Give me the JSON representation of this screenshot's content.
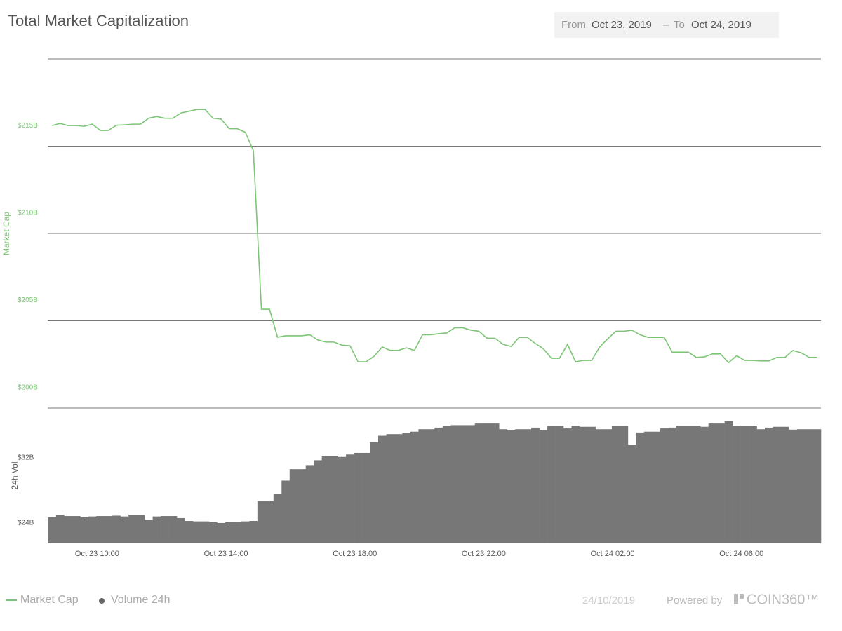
{
  "header": {
    "title": "Total Market Capitalization",
    "from_label": "From",
    "from_date": "Oct 23, 2019",
    "separator": "–",
    "to_label": "To",
    "to_date": "Oct 24, 2019"
  },
  "chart_data": [
    {
      "type": "line",
      "y_label": "Market Cap",
      "x": [
        "Oct 23 08:36",
        "Oct 23 08:51",
        "Oct 23 09:06",
        "Oct 23 09:21",
        "Oct 23 09:36",
        "Oct 23 09:51",
        "Oct 23 10:06",
        "Oct 23 10:21",
        "Oct 23 10:36",
        "Oct 23 10:51",
        "Oct 23 11:06",
        "Oct 23 11:21",
        "Oct 23 11:36",
        "Oct 23 11:51",
        "Oct 23 12:06",
        "Oct 23 12:21",
        "Oct 23 12:36",
        "Oct 23 12:51",
        "Oct 23 13:06",
        "Oct 23 13:21",
        "Oct 23 13:36",
        "Oct 23 13:51",
        "Oct 23 14:06",
        "Oct 23 14:21",
        "Oct 23 14:36",
        "Oct 23 14:51",
        "Oct 23 15:06",
        "Oct 23 15:21",
        "Oct 23 15:36",
        "Oct 23 15:51",
        "Oct 23 16:06",
        "Oct 23 16:21",
        "Oct 23 16:36",
        "Oct 23 16:51",
        "Oct 23 17:06",
        "Oct 23 17:21",
        "Oct 23 17:36",
        "Oct 23 17:51",
        "Oct 23 18:06",
        "Oct 23 18:21",
        "Oct 23 18:36",
        "Oct 23 18:51",
        "Oct 23 19:06",
        "Oct 23 19:21",
        "Oct 23 19:36",
        "Oct 23 19:51",
        "Oct 23 20:06",
        "Oct 23 20:21",
        "Oct 23 20:36",
        "Oct 23 20:51",
        "Oct 23 21:06",
        "Oct 23 21:21",
        "Oct 23 21:36",
        "Oct 23 21:51",
        "Oct 23 22:06",
        "Oct 23 22:21",
        "Oct 23 22:36",
        "Oct 23 22:51",
        "Oct 23 23:06",
        "Oct 23 23:21",
        "Oct 23 23:36",
        "Oct 23 23:51",
        "Oct 24 00:06",
        "Oct 24 00:21",
        "Oct 24 00:36",
        "Oct 24 00:51",
        "Oct 24 01:06",
        "Oct 24 01:21",
        "Oct 24 01:36",
        "Oct 24 01:51",
        "Oct 24 02:06",
        "Oct 24 02:21",
        "Oct 24 02:36",
        "Oct 24 02:51",
        "Oct 24 03:06",
        "Oct 24 03:21",
        "Oct 24 03:36",
        "Oct 24 03:51",
        "Oct 24 04:06",
        "Oct 24 04:21",
        "Oct 24 04:36",
        "Oct 24 04:51",
        "Oct 24 05:06",
        "Oct 24 05:21",
        "Oct 24 05:36",
        "Oct 24 05:51",
        "Oct 24 06:06",
        "Oct 24 06:21",
        "Oct 24 06:36",
        "Oct 24 06:51",
        "Oct 24 07:06",
        "Oct 24 07:21",
        "Oct 24 07:36",
        "Oct 24 07:51",
        "Oct 24 08:06",
        "Oct 24 08:21"
      ],
      "xlim": [
        "Oct 23 08:28",
        "Oct 24 08:28"
      ],
      "ylim": [
        200,
        220
      ],
      "yticks": [
        {
          "value": 200,
          "label": "$200B"
        },
        {
          "value": 205,
          "label": "$205B"
        },
        {
          "value": 210,
          "label": "$210B"
        },
        {
          "value": 215,
          "label": "$215B"
        }
      ],
      "grid": true,
      "series": [
        {
          "name": "Market Cap",
          "color": "#7cc576",
          "values": [
            216.18,
            216.3,
            216.18,
            216.18,
            216.14,
            216.26,
            215.9,
            215.9,
            216.2,
            216.22,
            216.26,
            216.26,
            216.6,
            216.7,
            216.6,
            216.6,
            216.9,
            217.0,
            217.1,
            217.1,
            216.6,
            216.55,
            216.0,
            216.0,
            215.8,
            214.74,
            205.66,
            205.66,
            204.06,
            204.14,
            204.14,
            204.14,
            204.2,
            203.9,
            203.78,
            203.78,
            203.6,
            203.57,
            202.65,
            202.65,
            202.97,
            203.5,
            203.3,
            203.3,
            203.45,
            203.3,
            204.2,
            204.2,
            204.26,
            204.3,
            204.6,
            204.6,
            204.46,
            204.4,
            204.0,
            204.0,
            203.65,
            203.53,
            204.05,
            204.05,
            203.7,
            203.4,
            202.85,
            202.85,
            203.65,
            202.65,
            202.73,
            202.73,
            203.5,
            203.97,
            204.4,
            204.4,
            204.46,
            204.2,
            204.05,
            204.05,
            204.05,
            203.2,
            203.2,
            203.2,
            202.9,
            202.93,
            203.1,
            203.1,
            202.6,
            203.0,
            202.73,
            202.73,
            202.7,
            202.7,
            202.9,
            202.9,
            203.3,
            203.17,
            202.9,
            202.9
          ]
        }
      ]
    },
    {
      "type": "bar",
      "y_label": "24h Vol",
      "x": [
        "Oct 23 08:36",
        "Oct 23 08:51",
        "Oct 23 09:06",
        "Oct 23 09:21",
        "Oct 23 09:36",
        "Oct 23 09:51",
        "Oct 23 10:06",
        "Oct 23 10:21",
        "Oct 23 10:36",
        "Oct 23 10:51",
        "Oct 23 11:06",
        "Oct 23 11:21",
        "Oct 23 11:36",
        "Oct 23 11:51",
        "Oct 23 12:06",
        "Oct 23 12:21",
        "Oct 23 12:36",
        "Oct 23 12:51",
        "Oct 23 13:06",
        "Oct 23 13:21",
        "Oct 23 13:36",
        "Oct 23 13:51",
        "Oct 23 14:06",
        "Oct 23 14:21",
        "Oct 23 14:36",
        "Oct 23 14:51",
        "Oct 23 15:06",
        "Oct 23 15:21",
        "Oct 23 15:36",
        "Oct 23 15:51",
        "Oct 23 16:06",
        "Oct 23 16:21",
        "Oct 23 16:36",
        "Oct 23 16:51",
        "Oct 23 17:06",
        "Oct 23 17:21",
        "Oct 23 17:36",
        "Oct 23 17:51",
        "Oct 23 18:06",
        "Oct 23 18:21",
        "Oct 23 18:36",
        "Oct 23 18:51",
        "Oct 23 19:06",
        "Oct 23 19:21",
        "Oct 23 19:36",
        "Oct 23 19:51",
        "Oct 23 20:06",
        "Oct 23 20:21",
        "Oct 23 20:36",
        "Oct 23 20:51",
        "Oct 23 21:06",
        "Oct 23 21:21",
        "Oct 23 21:36",
        "Oct 23 21:51",
        "Oct 23 22:06",
        "Oct 23 22:21",
        "Oct 23 22:36",
        "Oct 23 22:51",
        "Oct 23 23:06",
        "Oct 23 23:21",
        "Oct 23 23:36",
        "Oct 23 23:51",
        "Oct 24 00:06",
        "Oct 24 00:21",
        "Oct 24 00:36",
        "Oct 24 00:51",
        "Oct 24 01:06",
        "Oct 24 01:21",
        "Oct 24 01:36",
        "Oct 24 01:51",
        "Oct 24 02:06",
        "Oct 24 02:21",
        "Oct 24 02:36",
        "Oct 24 02:51",
        "Oct 24 03:06",
        "Oct 24 03:21",
        "Oct 24 03:36",
        "Oct 24 03:51",
        "Oct 24 04:06",
        "Oct 24 04:21",
        "Oct 24 04:36",
        "Oct 24 04:51",
        "Oct 24 05:06",
        "Oct 24 05:21",
        "Oct 24 05:36",
        "Oct 24 05:51",
        "Oct 24 06:06",
        "Oct 24 06:21",
        "Oct 24 06:36",
        "Oct 24 06:51",
        "Oct 24 07:06",
        "Oct 24 07:21",
        "Oct 24 07:36",
        "Oct 24 07:51",
        "Oct 24 08:06",
        "Oct 24 08:21"
      ],
      "xlim": [
        "Oct 23 08:28",
        "Oct 24 08:28"
      ],
      "xticks": [
        "Oct 23 10:00",
        "Oct 23 14:00",
        "Oct 23 18:00",
        "Oct 23 22:00",
        "Oct 24 02:00",
        "Oct 24 06:00"
      ],
      "ylim": [
        24,
        40.6
      ],
      "yticks": [
        {
          "value": 24,
          "label": "$24B"
        },
        {
          "value": 32,
          "label": "$32B"
        }
      ],
      "grid": false,
      "series": [
        {
          "name": "Volume 24h",
          "color": "#777777",
          "values": [
            27.2,
            27.5,
            27.35,
            27.35,
            27.2,
            27.3,
            27.35,
            27.35,
            27.4,
            27.3,
            27.5,
            27.5,
            26.9,
            27.3,
            27.35,
            27.35,
            27.1,
            26.75,
            26.7,
            26.7,
            26.6,
            26.5,
            26.6,
            26.6,
            26.7,
            26.75,
            29.2,
            29.2,
            30.1,
            31.7,
            33.1,
            33.1,
            33.6,
            34.2,
            34.75,
            34.75,
            34.6,
            34.9,
            35.1,
            35.1,
            36.4,
            37.2,
            37.4,
            37.4,
            37.5,
            37.7,
            38,
            38,
            38.2,
            38.4,
            38.5,
            38.5,
            38.5,
            38.7,
            38.7,
            38.7,
            38,
            37.9,
            38,
            38,
            38.2,
            37.85,
            38.4,
            38.4,
            38.1,
            38.45,
            38.3,
            38.3,
            38,
            38,
            38.4,
            38.4,
            36.1,
            37.6,
            37.7,
            37.7,
            38.1,
            38.2,
            38.4,
            38.4,
            38.4,
            38.3,
            38.7,
            38.7,
            39,
            38.4,
            38.45,
            38.45,
            38,
            38.2,
            38.3,
            38.3,
            37.95,
            38,
            38,
            38
          ]
        }
      ]
    }
  ],
  "footer": {
    "date": "24/10/2019",
    "powered_by": "Powered by",
    "brand": "COIN360™"
  }
}
